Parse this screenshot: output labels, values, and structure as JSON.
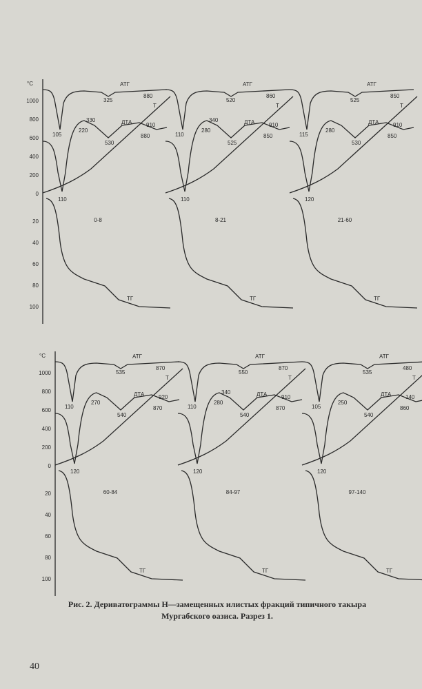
{
  "figure": {
    "temp_unit": "°С",
    "temp_ticks": [
      "1000",
      "800",
      "600",
      "400",
      "200",
      "0"
    ],
    "pct_ticks": [
      "20",
      "40",
      "60",
      "80",
      "100"
    ],
    "panels": [
      {
        "sample": "0-8",
        "atg_label": "АТГ",
        "atg_peak_mid": "325",
        "atg_peak_end": "880",
        "extra": [
          "330"
        ],
        "dta_label": "ДТА",
        "dta_peak_early": "220",
        "dta_dip": "530",
        "dta_peak_late": "910",
        "dta_end": "880",
        "t_label": "Т",
        "dtg_min": "105",
        "dta_min": "110",
        "tg_label": "ТГ"
      },
      {
        "sample": "8-21",
        "atg_label": "АТГ",
        "atg_peak_mid": "520",
        "atg_peak_end": "860",
        "extra": [
          "340"
        ],
        "dta_label": "ДТА",
        "dta_peak_early": "280",
        "dta_dip": "525",
        "dta_peak_late": "910",
        "dta_end": "850",
        "t_label": "Т",
        "dtg_min": "110",
        "dta_min": "110",
        "tg_label": "ТГ"
      },
      {
        "sample": "21-60",
        "atg_label": "АТГ",
        "atg_peak_mid": "525",
        "atg_peak_end": "850",
        "extra": [],
        "dta_label": "ДТА",
        "dta_peak_early": "280",
        "dta_dip": "530",
        "dta_peak_late": "910",
        "dta_end": "850",
        "t_label": "Т",
        "dtg_min": "115",
        "dta_min": "120",
        "tg_label": "ТГ"
      },
      {
        "sample": "60-84",
        "atg_label": "АТГ",
        "atg_peak_mid": "535",
        "atg_peak_end": "870",
        "extra": [],
        "dta_label": "ДТА",
        "dta_peak_early": "270",
        "dta_dip": "540",
        "dta_peak_late": "920",
        "dta_end": "870",
        "t_label": "Т",
        "dtg_min": "110",
        "dta_min": "120",
        "tg_label": "ТГ"
      },
      {
        "sample": "84-97",
        "atg_label": "АТГ",
        "atg_peak_mid": "550",
        "atg_peak_end": "870",
        "extra": [
          "340"
        ],
        "dta_label": "ДТА",
        "dta_peak_early": "280",
        "dta_dip": "540",
        "dta_peak_late": "910",
        "dta_end": "870",
        "t_label": "Т",
        "dtg_min": "110",
        "dta_min": "120",
        "tg_label": "ТГ"
      },
      {
        "sample": "97-140",
        "atg_label": "АТГ",
        "atg_peak_mid": "535",
        "atg_peak_end": "480",
        "extra": [],
        "dta_label": "ДТА",
        "dta_peak_early": "250",
        "dta_dip": "540",
        "dta_peak_late": "140",
        "dta_end": "860",
        "t_label": "Т",
        "dtg_min": "105",
        "dta_min": "120",
        "tg_label": "ТГ"
      }
    ]
  },
  "caption": {
    "lines": [
      "Рис. 2. Дериватограммы Н—замещенных илистых фракций типичного такыра",
      "Мургабского оазиса. Разрез 1."
    ]
  },
  "page_number": "40"
}
